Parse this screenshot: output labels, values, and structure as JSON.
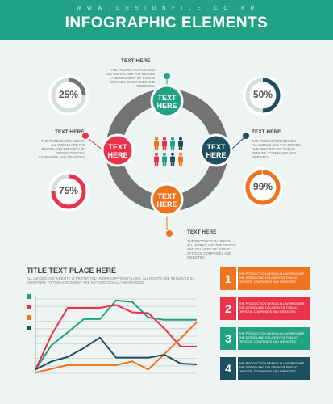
{
  "header": {
    "site": "W W W . D E S I G N F I L E . C O . K R",
    "title": "INFOGRAPHIC ELEMENTS"
  },
  "colors": {
    "green": "#22a284",
    "navy": "#1e4f5e",
    "red": "#e8334a",
    "orange": "#f07320",
    "gray": "#737373"
  },
  "diagram": {
    "nodes": [
      {
        "label": "TEXT HERE",
        "color": "#22a284"
      },
      {
        "label": "TEXT HERE",
        "color": "#e8334a"
      },
      {
        "label": "TEXT HERE",
        "color": "#1e4f5e"
      },
      {
        "label": "TEXT HERE",
        "color": "#f07320"
      }
    ],
    "callouts": [
      {
        "title": "TEXT HERE",
        "body": "THE PRODUCTION DESIGN ALL WORKS ARE THE DESIGN AND DELIVERY OF PUBLIC OFFICES, COMPANIES AND WEBSITES."
      },
      {
        "title": "TEXT HERE",
        "body": "THE PRODUCTION DESIGN ALL WORKS ARE THE DESIGN AND DELIVERY OF PUBLIC OFFICES, COMPANIES AND WEBSITES."
      },
      {
        "title": "TEXT HERE",
        "body": "THE PRODUCTION DESIGN ALL WORKS ARE THE DESIGN AND DELIVERY OF PUBLIC OFFICES, COMPANIES AND WEBSITES."
      },
      {
        "title": "TEXT HERE",
        "body": "THE PRODUCTION DESIGN ALL WORKS ARE THE DESIGN AND DELIVERY OF PUBLIC OFFICES, COMPANIES AND WEBSITES."
      }
    ],
    "people_icons": [
      "person-icon"
    ]
  },
  "gauges": [
    {
      "label": "25%",
      "value": 25,
      "color": "#737373"
    },
    {
      "label": "50%",
      "value": 50,
      "color": "#1e4f5e"
    },
    {
      "label": "75%",
      "value": 75,
      "color": "#e8334a"
    },
    {
      "label": "99%",
      "value": 99,
      "color": "#f07320"
    }
  ],
  "chart_data": {
    "type": "line",
    "title": "TITLE TEXT PLACE HERE",
    "subtitle": "ALL IMAGES AND WEBSITE IS PROTECTED UNDER COPYRIGHT LAWS. ALL RIGHTS ARE RESERVED BY SIGNATURE TO THIS AGREEMENT ARE NOT SPECIFICALLY MENTIONED.",
    "x": [
      0,
      1,
      2,
      3,
      4,
      5,
      6,
      7,
      8,
      9,
      10
    ],
    "ylim": [
      0,
      10
    ],
    "grid": true,
    "legend": "left",
    "series": [
      {
        "color": "#22a284",
        "values": [
          0.5,
          3.8,
          5.5,
          7.3,
          7.3,
          9.8,
          9.6,
          7.5,
          7.2,
          7.2,
          7.2
        ]
      },
      {
        "color": "#e8334a",
        "values": [
          0.5,
          5.2,
          8.8,
          8.8,
          8.8,
          9.2,
          8.2,
          8.1,
          6.0,
          3.6,
          3.6
        ]
      },
      {
        "color": "#f07320",
        "values": [
          0.1,
          0.6,
          1.1,
          1.1,
          1.1,
          1.1,
          1.6,
          0.5,
          2.6,
          4.7,
          6.9
        ]
      },
      {
        "color": "#1e4f5e",
        "values": [
          0.5,
          1.6,
          2.2,
          3.4,
          4.8,
          2.1,
          2.1,
          2.1,
          2.5,
          1.3,
          1.2
        ]
      }
    ]
  },
  "info_boxes": [
    {
      "num": "1",
      "color": "#f07320",
      "text": "THE PRODUCTION DESIGN ALL WORKS ARE THE DESIGN AND DELIVERY OF PUBLIC OFFICES, COMPANIES AND WEBSITES."
    },
    {
      "num": "2",
      "color": "#e8334a",
      "text": "THE PRODUCTION DESIGN ALL WORKS ARE THE DESIGN AND DELIVERY OF PUBLIC OFFICES, COMPANIES AND WEBSITES."
    },
    {
      "num": "3",
      "color": "#22a284",
      "text": "THE PRODUCTION DESIGN ALL WORKS ARE THE DESIGN AND DELIVERY OF PUBLIC OFFICES, COMPANIES AND WEBSITES."
    },
    {
      "num": "4",
      "color": "#1e4f5e",
      "text": "THE PRODUCTION DESIGN ALL WORKS ARE THE DESIGN AND DELIVERY OF PUBLIC OFFICES, COMPANIES AND WEBSITES."
    }
  ]
}
